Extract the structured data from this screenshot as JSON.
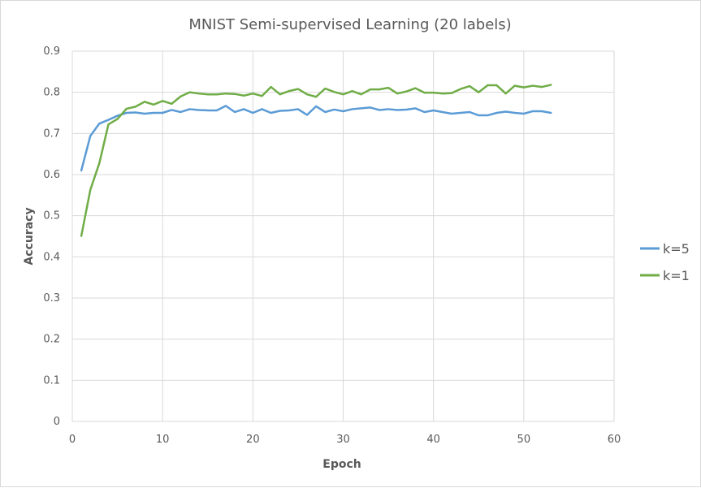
{
  "chart_data": {
    "type": "line",
    "title": "MNIST Semi-supervised Learning (20 labels)",
    "xlabel": "Epoch",
    "ylabel": "Accuracy",
    "xlim": [
      0,
      60
    ],
    "ylim": [
      0,
      0.9
    ],
    "xticks": [
      0,
      10,
      20,
      30,
      40,
      50,
      60
    ],
    "yticks": [
      0,
      0.1,
      0.2,
      0.3,
      0.4,
      0.5,
      0.6,
      0.7,
      0.8,
      0.9
    ],
    "grid": true,
    "legend_position": "right",
    "series": [
      {
        "name": "k=5",
        "color": "#5b9bd5",
        "x": [
          1,
          2,
          3,
          4,
          5,
          6,
          7,
          8,
          9,
          10,
          11,
          12,
          13,
          14,
          15,
          16,
          17,
          18,
          19,
          20,
          21,
          22,
          23,
          24,
          25,
          26,
          27,
          28,
          29,
          30,
          31,
          32,
          33,
          34,
          35,
          36,
          37,
          38,
          39,
          40,
          41,
          42,
          43,
          44,
          45,
          46,
          47,
          48,
          49,
          50,
          51,
          52,
          53
        ],
        "values": [
          0.61,
          0.694,
          0.724,
          0.733,
          0.743,
          0.75,
          0.751,
          0.748,
          0.75,
          0.75,
          0.757,
          0.752,
          0.759,
          0.757,
          0.756,
          0.756,
          0.767,
          0.752,
          0.759,
          0.75,
          0.759,
          0.75,
          0.755,
          0.756,
          0.759,
          0.745,
          0.766,
          0.752,
          0.758,
          0.754,
          0.759,
          0.761,
          0.763,
          0.757,
          0.759,
          0.757,
          0.758,
          0.761,
          0.752,
          0.756,
          0.752,
          0.748,
          0.75,
          0.752,
          0.744,
          0.744,
          0.75,
          0.753,
          0.75,
          0.748,
          0.754,
          0.754,
          0.75
        ]
      },
      {
        "name": "k=1",
        "color": "#70ad47",
        "x": [
          1,
          2,
          3,
          4,
          5,
          6,
          7,
          8,
          9,
          10,
          11,
          12,
          13,
          14,
          15,
          16,
          17,
          18,
          19,
          20,
          21,
          22,
          23,
          24,
          25,
          26,
          27,
          28,
          29,
          30,
          31,
          32,
          33,
          34,
          35,
          36,
          37,
          38,
          39,
          40,
          41,
          42,
          43,
          44,
          45,
          46,
          47,
          48,
          49,
          50,
          51,
          52,
          53
        ],
        "values": [
          0.451,
          0.563,
          0.628,
          0.722,
          0.735,
          0.76,
          0.765,
          0.777,
          0.77,
          0.779,
          0.772,
          0.79,
          0.8,
          0.797,
          0.795,
          0.795,
          0.797,
          0.796,
          0.792,
          0.797,
          0.791,
          0.813,
          0.795,
          0.803,
          0.808,
          0.795,
          0.789,
          0.809,
          0.801,
          0.795,
          0.803,
          0.795,
          0.807,
          0.807,
          0.811,
          0.797,
          0.802,
          0.81,
          0.799,
          0.799,
          0.797,
          0.798,
          0.808,
          0.815,
          0.8,
          0.817,
          0.817,
          0.797,
          0.816,
          0.812,
          0.816,
          0.813,
          0.818
        ]
      }
    ]
  }
}
